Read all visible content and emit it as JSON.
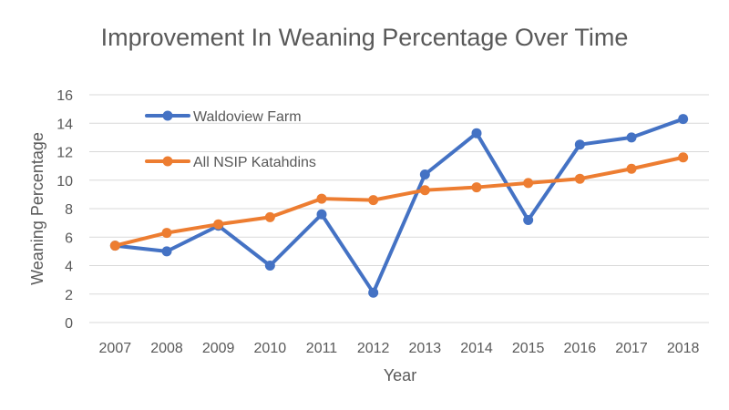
{
  "chart_data": {
    "type": "line",
    "title": "Improvement In Weaning Percentage Over Time",
    "xlabel": "Year",
    "ylabel": "Weaning Percentage",
    "categories": [
      "2007",
      "2008",
      "2009",
      "2010",
      "2011",
      "2012",
      "2013",
      "2014",
      "2015",
      "2016",
      "2017",
      "2018"
    ],
    "ylim": [
      0,
      16
    ],
    "yticks": [
      0,
      2,
      4,
      6,
      8,
      10,
      12,
      14,
      16
    ],
    "grid": true,
    "legend": "top-left",
    "series": [
      {
        "name": "Waldoview Farm",
        "color": "#4472C4",
        "values": [
          5.4,
          5.0,
          6.8,
          4.0,
          7.6,
          2.1,
          10.4,
          13.3,
          7.2,
          12.5,
          13.0,
          14.3
        ]
      },
      {
        "name": "All NSIP Katahdins",
        "color": "#ED7D31",
        "values": [
          5.4,
          6.3,
          6.9,
          7.4,
          8.7,
          8.6,
          9.3,
          9.5,
          9.8,
          10.1,
          10.8,
          11.6
        ]
      }
    ]
  }
}
